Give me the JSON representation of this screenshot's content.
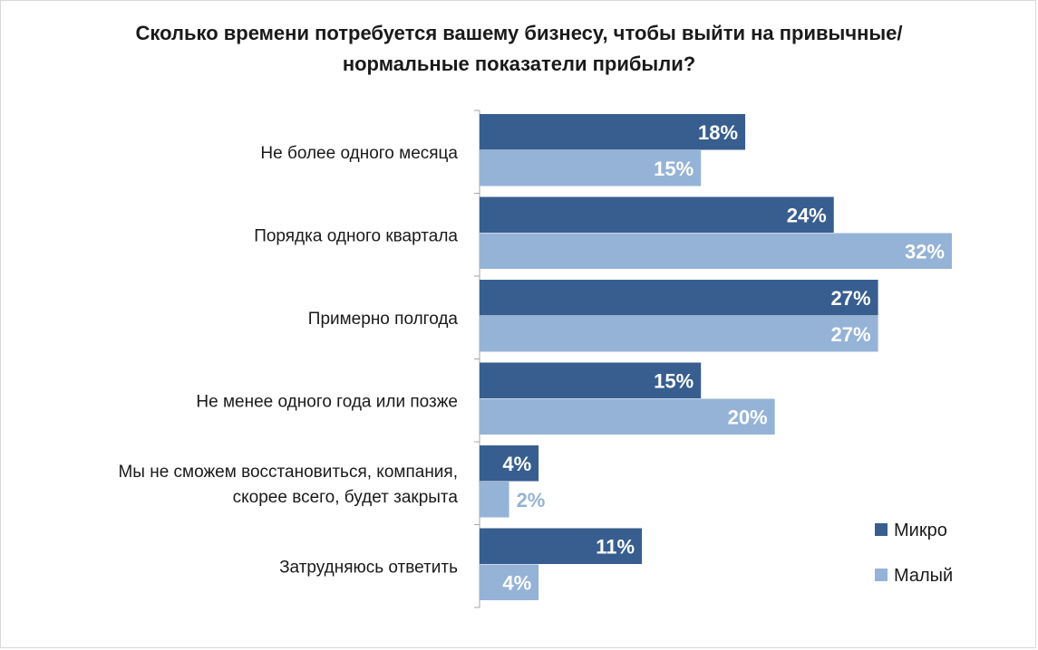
{
  "chart_data": {
    "type": "bar",
    "orientation": "horizontal",
    "title": "Сколько времени потребуется вашему бизнесу, чтобы выйти на привычные/ нормальные показатели прибыли?",
    "title_lines": [
      "Сколько времени потребуется вашему бизнесу, чтобы выйти на привычные/",
      "нормальные показатели прибыли?"
    ],
    "categories": [
      [
        "Не более одного месяца"
      ],
      [
        "Порядка одного квартала"
      ],
      [
        "Примерно полгода"
      ],
      [
        "Не менее одного года или позже"
      ],
      [
        "Мы не сможем восстановиться, компания,",
        "скорее всего, будет закрыта"
      ],
      [
        "Затрудняюсь ответить"
      ]
    ],
    "series": [
      {
        "name": "Микро",
        "color": "#375e8f",
        "label_color": "#ffffff",
        "values": [
          18,
          24,
          27,
          15,
          4,
          11
        ],
        "labels": [
          "18%",
          "24%",
          "27%",
          "15%",
          "4%",
          "11%"
        ]
      },
      {
        "name": "Малый",
        "color": "#95b3d7",
        "label_color": "#ffffff",
        "label_outside_color": "#95b3d7",
        "values": [
          15,
          32,
          27,
          20,
          2,
          4
        ],
        "labels": [
          "15%",
          "32%",
          "27%",
          "20%",
          "2%",
          "4%"
        ]
      }
    ],
    "xlim": [
      0,
      32
    ],
    "value_unit": "%",
    "legend_position": "bottom-right",
    "grid": false
  }
}
